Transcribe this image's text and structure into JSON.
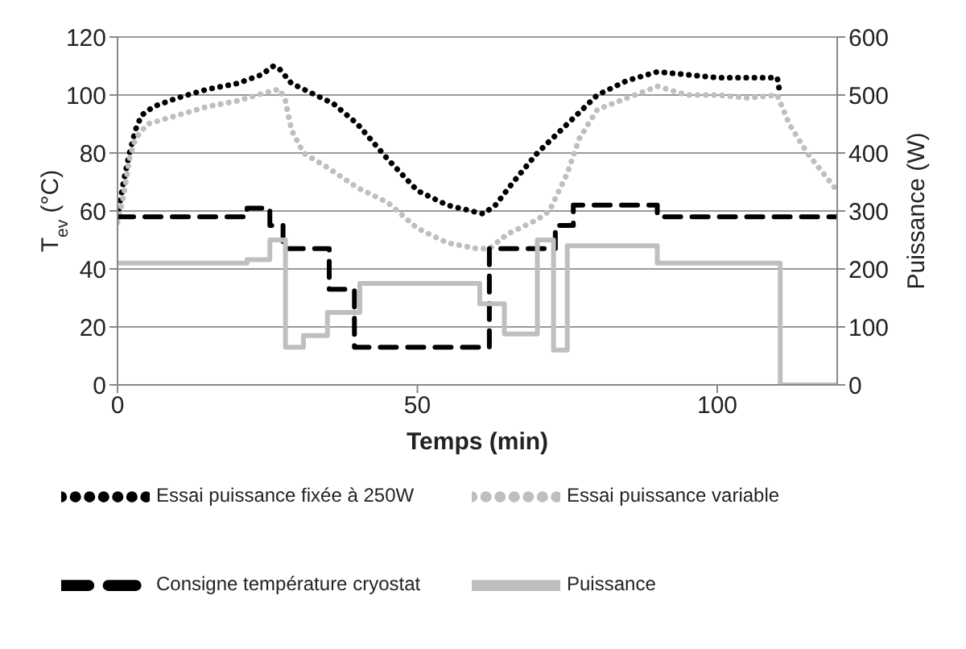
{
  "chart_data": {
    "type": "line",
    "xlabel": "Temps (min)",
    "ylabel": "T$_{ev}$ (°C)",
    "y2label": "Puissance (W)",
    "xlim": [
      0,
      120
    ],
    "xticks": [
      0,
      50,
      100
    ],
    "ylim": [
      0,
      120
    ],
    "yticks": [
      0,
      20,
      40,
      60,
      80,
      100,
      120
    ],
    "y2lim": [
      0,
      600
    ],
    "y2ticks": [
      0,
      100,
      200,
      300,
      400,
      500,
      600
    ],
    "grid": "y",
    "legend": "bottom",
    "series": [
      {
        "name": "Essai puissance fixée à 250W",
        "color": "#000000",
        "line_style": "dotted",
        "x": [
          0,
          1,
          2,
          3,
          4,
          6,
          10,
          15,
          20,
          24,
          26,
          27,
          29,
          33,
          36,
          40,
          45,
          50,
          55,
          60,
          61,
          63,
          66,
          70,
          75,
          80,
          85,
          90,
          95,
          100,
          105,
          110,
          110.5
        ],
        "values": [
          58,
          70,
          80,
          88,
          93,
          96,
          99,
          102,
          104,
          107,
          110,
          109,
          104,
          100,
          97,
          90,
          78,
          67,
          62,
          59.5,
          59,
          62,
          70,
          80,
          90,
          100,
          105,
          108,
          107,
          106,
          106,
          106,
          100
        ]
      },
      {
        "name": "Essai puissance variable",
        "color": "#bfbfbf",
        "line_style": "dotted",
        "x": [
          0,
          1,
          2,
          3,
          5,
          10,
          15,
          20,
          25,
          27,
          28,
          29,
          31,
          35,
          40,
          45,
          50,
          55,
          60,
          62,
          65,
          70,
          72,
          75,
          77,
          80,
          85,
          90,
          95,
          100,
          105,
          110,
          112,
          115,
          120
        ],
        "values": [
          56,
          65,
          78,
          85,
          90,
          93,
          96,
          98,
          101,
          102,
          98,
          88,
          80,
          75,
          68,
          63,
          54,
          49,
          47,
          47,
          52,
          57,
          60,
          73,
          85,
          95,
          99,
          103,
          100,
          100,
          99,
          100,
          90,
          80,
          67
        ]
      },
      {
        "name": "Consigne température cryostat",
        "color": "#000000",
        "type": "step",
        "line_style": "dashed",
        "x": [
          0,
          21.6,
          25.4,
          27.6,
          35.3,
          39.5,
          62,
          73,
          76,
          90,
          120
        ],
        "values": [
          58,
          61,
          55,
          47,
          33,
          13,
          47,
          55,
          62,
          58,
          58
        ]
      },
      {
        "name": "Puissance",
        "color": "#bfbfbf",
        "type": "step",
        "line_style": "solid",
        "axis": "y2",
        "x": [
          0,
          21.6,
          25.4,
          28,
          31,
          35,
          40.4,
          60.4,
          64.5,
          70,
          72.7,
          75,
          90,
          110.5,
          120
        ],
        "values": [
          210,
          216,
          250,
          65,
          85,
          125,
          175,
          140,
          88,
          250,
          60,
          240,
          210,
          0,
          0
        ]
      }
    ]
  }
}
